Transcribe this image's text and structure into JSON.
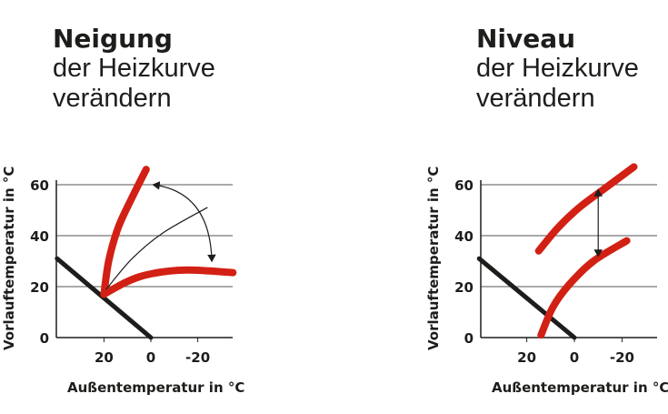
{
  "panels": [
    {
      "title": "Neigung",
      "subtitle1": "der Heizkurve",
      "subtitle2": "verändern"
    },
    {
      "title": "Niveau",
      "subtitle1": "der Heizkurve",
      "subtitle2": "verändern"
    }
  ],
  "colors": {
    "curve": "#d22014",
    "line": "#1d1d1b",
    "grid": "#555555"
  },
  "chart_data": [
    {
      "type": "line",
      "xlabel": "Außentemperatur in °C",
      "ylabel": "Vorlauftemperatur in °C",
      "xticks": [
        "20",
        "0",
        "-20"
      ],
      "yticks": [
        "60",
        "40",
        "20",
        "0"
      ],
      "xlim": [
        40,
        -35
      ],
      "ylim": [
        0,
        60
      ],
      "grid": true,
      "series": [
        {
          "role": "room-line",
          "points": [
            [
              40,
              31
            ],
            [
              0,
              0
            ]
          ]
        },
        {
          "role": "steep-curve",
          "points": [
            [
              20,
              17
            ],
            [
              18,
              30
            ],
            [
              14,
              43
            ],
            [
              8,
              55
            ],
            [
              2,
              66
            ]
          ]
        },
        {
          "role": "flat-curve",
          "points": [
            [
              20,
              17
            ],
            [
              10,
              22
            ],
            [
              0,
              25
            ],
            [
              -15,
              26.5
            ],
            [
              -35,
              25.5
            ]
          ]
        },
        {
          "role": "thin-curve",
          "points": [
            [
              19,
              19
            ],
            [
              8,
              31
            ],
            [
              -5,
              41
            ],
            [
              -24,
              51
            ]
          ]
        }
      ],
      "annotation": {
        "type": "curved-double-arrow",
        "from": [
          -1,
          60
        ],
        "to": [
          -26,
          30
        ]
      }
    },
    {
      "type": "line",
      "xlabel": "Außentemperatur in °C",
      "ylabel": "Vorlauftemperatur in °C",
      "xticks": [
        "20",
        "0",
        "-20"
      ],
      "yticks": [
        "60",
        "40",
        "20",
        "0"
      ],
      "xlim": [
        40,
        -35
      ],
      "ylim": [
        0,
        60
      ],
      "grid": true,
      "series": [
        {
          "role": "room-line",
          "points": [
            [
              40,
              31
            ],
            [
              0,
              0
            ]
          ]
        },
        {
          "role": "upper-curve",
          "points": [
            [
              15,
              34
            ],
            [
              7,
              43
            ],
            [
              -2,
              51
            ],
            [
              -12,
              58
            ],
            [
              -25,
              67
            ]
          ]
        },
        {
          "role": "lower-curve",
          "points": [
            [
              14,
              1
            ],
            [
              9,
              12
            ],
            [
              2,
              21
            ],
            [
              -8,
              30
            ],
            [
              -22,
              38
            ]
          ]
        }
      ],
      "annotation": {
        "type": "vertical-double-arrow",
        "x": -10,
        "from": 58,
        "to": 32
      }
    }
  ]
}
